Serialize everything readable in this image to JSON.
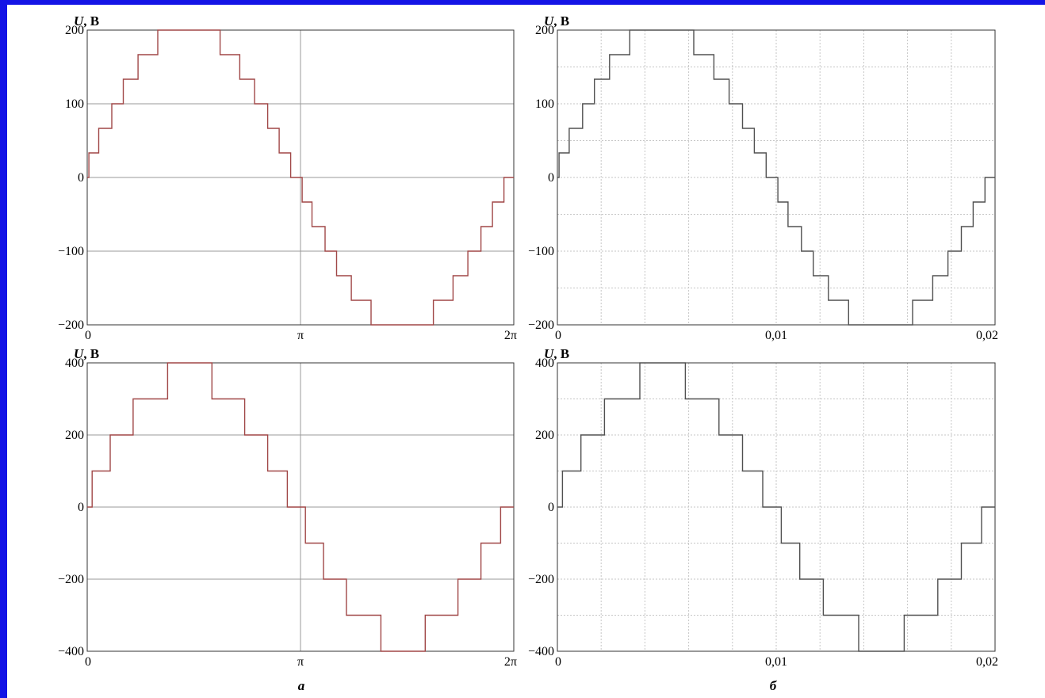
{
  "page": {
    "border_color": "#1414e6",
    "panel_labels": [
      "а",
      "б"
    ]
  },
  "colors": {
    "left_trace": "#a04747",
    "right_trace": "#505050",
    "axis": "#333333",
    "major_grid": "#9a9a9a",
    "minor_grid": "#c6c6c6",
    "text": "#000000"
  },
  "chart_data": [
    {
      "type": "line",
      "step": true,
      "ylabel_italic": "U",
      "ylabel_rest": ", В",
      "xlim": [
        0,
        6.2832
      ],
      "ylim": [
        -200,
        200
      ],
      "xticks": [
        {
          "v": 0,
          "label": "0"
        },
        {
          "v": 3.1416,
          "label": "π"
        },
        {
          "v": 6.2832,
          "label": "2π"
        }
      ],
      "yticks": [
        {
          "v": 200,
          "label": "200"
        },
        {
          "v": 100,
          "label": "100"
        },
        {
          "v": 0,
          "label": "0"
        },
        {
          "v": -100,
          "label": "−100"
        },
        {
          "v": -200,
          "label": "−200"
        }
      ],
      "grid": "major",
      "levels": [
        33.3,
        66.7,
        100,
        133.3,
        166.7,
        200
      ],
      "amplitude": 205
    },
    {
      "type": "line",
      "step": true,
      "ylabel_italic": "U",
      "ylabel_rest": ", В",
      "xlim": [
        0,
        0.02
      ],
      "ylim": [
        -200,
        200
      ],
      "xticks": [
        {
          "v": 0,
          "label": "0"
        },
        {
          "v": 0.01,
          "label": "0,01"
        },
        {
          "v": 0.02,
          "label": "0,02"
        }
      ],
      "yticks": [
        {
          "v": 200,
          "label": "200"
        },
        {
          "v": 100,
          "label": "100"
        },
        {
          "v": 0,
          "label": "0"
        },
        {
          "v": -100,
          "label": "−100"
        },
        {
          "v": -200,
          "label": "−200"
        }
      ],
      "grid": "dotted",
      "levels": [
        33.3,
        66.7,
        100,
        133.3,
        166.7,
        200
      ],
      "amplitude": 205
    },
    {
      "type": "line",
      "step": true,
      "ylabel_italic": "U",
      "ylabel_rest": ", В",
      "xlim": [
        0,
        6.2832
      ],
      "ylim": [
        -400,
        400
      ],
      "xticks": [
        {
          "v": 0,
          "label": "0"
        },
        {
          "v": 3.1416,
          "label": "π"
        },
        {
          "v": 6.2832,
          "label": "2π"
        }
      ],
      "yticks": [
        {
          "v": 400,
          "label": "400"
        },
        {
          "v": 200,
          "label": "200"
        },
        {
          "v": 0,
          "label": "0"
        },
        {
          "v": -200,
          "label": "−200"
        },
        {
          "v": -400,
          "label": "−400"
        }
      ],
      "grid": "major",
      "levels": [
        100,
        200,
        300,
        400
      ],
      "amplitude": 370
    },
    {
      "type": "line",
      "step": true,
      "ylabel_italic": "U",
      "ylabel_rest": ", В",
      "xlim": [
        0,
        0.02
      ],
      "ylim": [
        -400,
        400
      ],
      "xticks": [
        {
          "v": 0,
          "label": "0"
        },
        {
          "v": 0.01,
          "label": "0,01"
        },
        {
          "v": 0.02,
          "label": "0,02"
        }
      ],
      "yticks": [
        {
          "v": 400,
          "label": "400"
        },
        {
          "v": 200,
          "label": "200"
        },
        {
          "v": 0,
          "label": "0"
        },
        {
          "v": -200,
          "label": "−200"
        },
        {
          "v": -400,
          "label": "−400"
        }
      ],
      "grid": "dotted",
      "levels": [
        100,
        200,
        300,
        400
      ],
      "amplitude": 370
    }
  ]
}
